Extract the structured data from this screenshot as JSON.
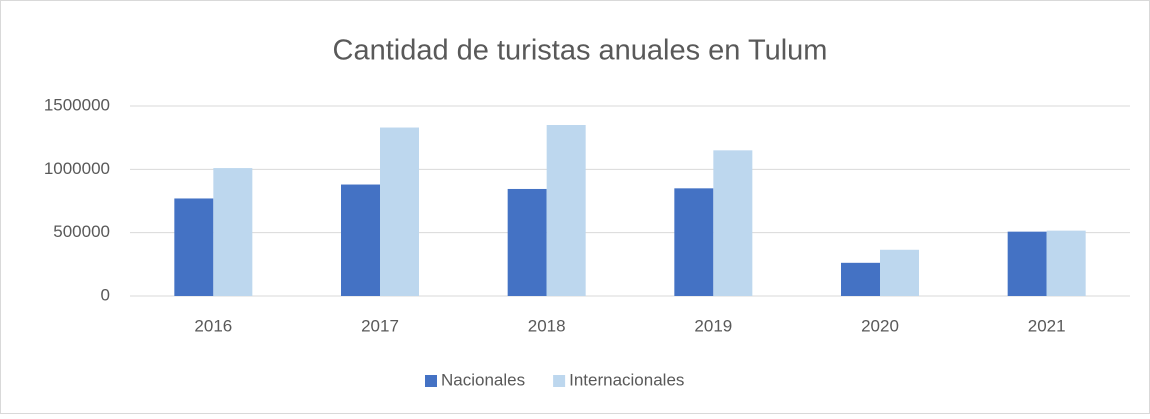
{
  "chart_data": {
    "type": "bar",
    "title": "Cantidad de turistas anuales en Tulum",
    "categories": [
      "2016",
      "2017",
      "2018",
      "2019",
      "2020",
      "2021"
    ],
    "series": [
      {
        "name": "Nacionales",
        "color": "#4472c4",
        "values": [
          770000,
          880000,
          845000,
          850000,
          262000,
          508000
        ]
      },
      {
        "name": "Internacionales",
        "color": "#bdd7ee",
        "values": [
          1010000,
          1330000,
          1350000,
          1150000,
          365000,
          516000
        ]
      }
    ],
    "ylim": [
      0,
      1500000
    ],
    "yticks": [
      0,
      500000,
      1000000,
      1500000
    ],
    "grid": true,
    "legend": "bottom"
  }
}
